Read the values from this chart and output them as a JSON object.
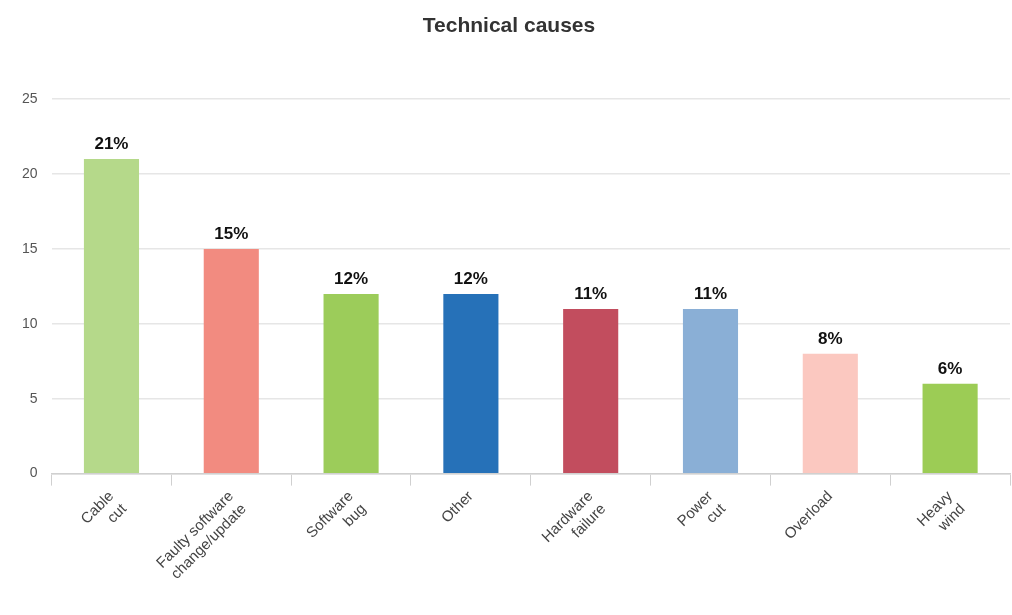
{
  "chart_data": {
    "type": "bar",
    "title": "Technical causes",
    "categories": [
      "Cable cut",
      "Faulty software change/update",
      "Software bug",
      "Other",
      "Hardware failure",
      "Power cut",
      "Overload",
      "Heavy wind"
    ],
    "values": [
      21,
      15,
      12,
      12,
      11,
      11,
      8,
      6
    ],
    "colors": [
      "#b5d98a",
      "#f28b80",
      "#9ccc5a",
      "#2671b8",
      "#c24d5e",
      "#8aafd6",
      "#fbc8c0",
      "#9ccc55"
    ],
    "value_labels": [
      "21%",
      "15%",
      "12%",
      "12%",
      "11%",
      "11%",
      "8%",
      "6%"
    ],
    "ylim": [
      0,
      25
    ],
    "yticks": [
      0,
      5,
      10,
      15,
      20,
      25
    ],
    "grid": "y"
  }
}
